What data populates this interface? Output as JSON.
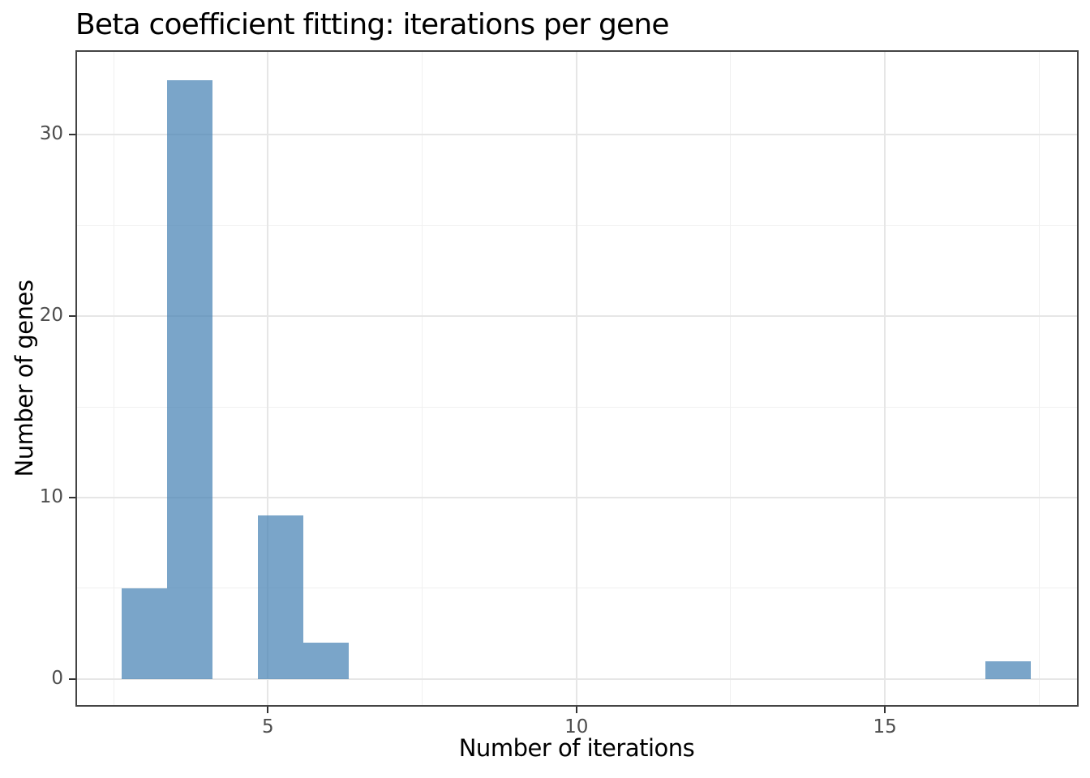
{
  "chart_data": {
    "type": "bar",
    "subtype": "histogram",
    "title": "Beta coefficient fitting: iterations per gene",
    "xlabel": "Number of iterations",
    "ylabel": "Number of genes",
    "xlim": [
      1.88,
      18.14
    ],
    "ylim": [
      -1.52,
      34.65
    ],
    "x_major_ticks": [
      5,
      10,
      15
    ],
    "x_minor_ticks": [
      2.5,
      7.5,
      12.5,
      17.5
    ],
    "y_major_ticks": [
      0,
      10,
      20,
      30
    ],
    "y_minor_ticks": [
      5,
      15,
      25
    ],
    "grid": true,
    "legend": false,
    "bin_width": 0.7368,
    "bins": [
      {
        "x0": 2.632,
        "x1": 3.368,
        "count": 5
      },
      {
        "x0": 3.368,
        "x1": 4.105,
        "count": 33
      },
      {
        "x0": 4.842,
        "x1": 5.579,
        "count": 9
      },
      {
        "x0": 5.579,
        "x1": 6.316,
        "count": 2
      },
      {
        "x0": 16.632,
        "x1": 17.368,
        "count": 1
      }
    ],
    "iterations_histogram": {
      "3": 5,
      "4": 33,
      "5": 9,
      "6": 2,
      "17": 1
    },
    "total_genes": 50,
    "colors": {
      "bar_fill": "rgba(70,130,180,0.72)",
      "panel_border": "#444444",
      "grid_major": "#e6e6e6",
      "grid_minor": "#f0f0f0",
      "tick_mark": "#333333",
      "tick_label": "#4d4d4d",
      "axis_title": "#000000",
      "title": "#000000",
      "background": "#ffffff"
    }
  }
}
